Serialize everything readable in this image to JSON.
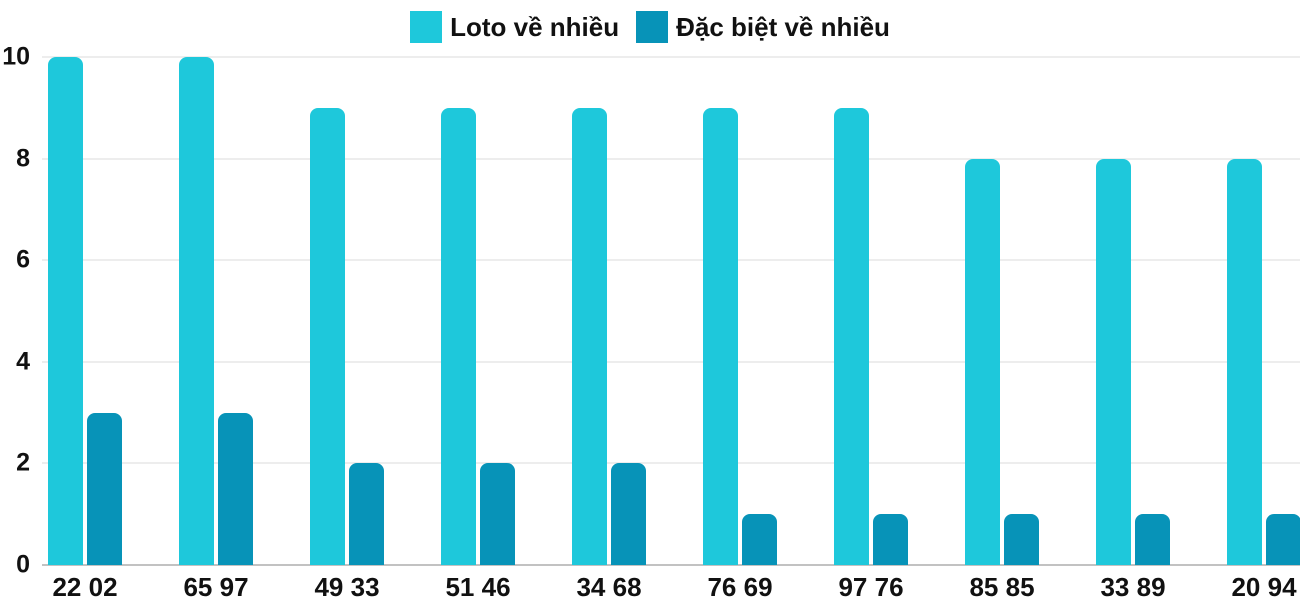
{
  "chart_data": {
    "type": "bar",
    "title": "",
    "categories": [
      "22 02",
      "65 97",
      "49 33",
      "51 46",
      "34 68",
      "76 69",
      "97 76",
      "85 85",
      "33 89",
      "20 94"
    ],
    "series": [
      {
        "name": "Loto về nhiều",
        "color": "#1EC8DB",
        "values": [
          10,
          10,
          9,
          9,
          9,
          9,
          9,
          8,
          8,
          8
        ]
      },
      {
        "name": "Đặc biệt về nhiều",
        "color": "#0793B8",
        "values": [
          3,
          3,
          2,
          2,
          2,
          1,
          1,
          1,
          1,
          1
        ]
      }
    ],
    "xlabel": "",
    "ylabel": "",
    "ylim": [
      0,
      10
    ],
    "yticks": [
      0,
      2,
      4,
      6,
      8,
      10
    ],
    "grid": true,
    "legend_position": "top-center"
  },
  "colors": {
    "gridline": "#EDEDED",
    "baseline": "#C2C2C2",
    "text": "#111111",
    "background": "#FFFFFF"
  }
}
